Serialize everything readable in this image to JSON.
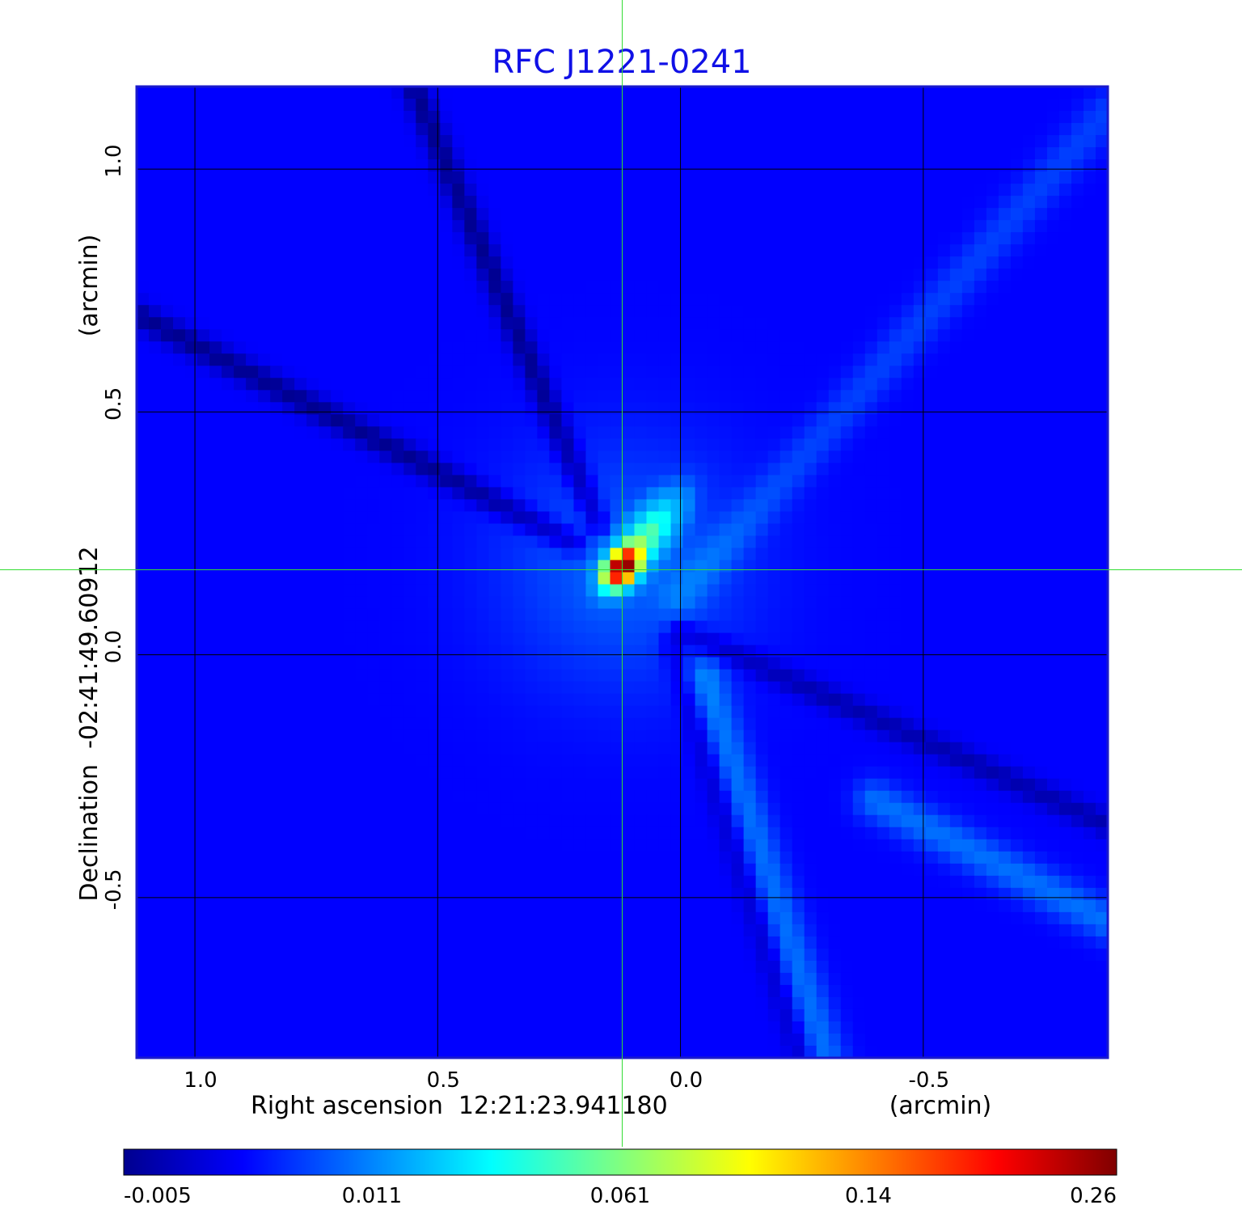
{
  "chart_data": {
    "type": "heatmap",
    "title": "RFC J1221-0241",
    "xlabel": "Right ascension  12:21:23.941180",
    "xunit": "(arcmin)",
    "ylabel": "Declination  -02:41:49.60912",
    "yunit": "(arcmin)",
    "x_ticks": [
      "1.0",
      "0.5",
      "0.0",
      "-0.5"
    ],
    "x_tick_values": [
      1.0,
      0.5,
      0.0,
      -0.5
    ],
    "y_ticks": [
      "1.0",
      "0.5",
      "0.0",
      "-0.5"
    ],
    "y_tick_values": [
      1.0,
      0.5,
      0.0,
      -0.5
    ],
    "xlim": [
      1.12,
      -0.88
    ],
    "ylim": [
      -0.83,
      1.17
    ],
    "grid": true,
    "crosshair": {
      "x": 0.12,
      "y": 0.175,
      "color": "#33dd33"
    },
    "colorbar": {
      "colormap": "jet",
      "ticks": [
        "-0.005",
        "0.011",
        "0.061",
        "0.14",
        "0.26"
      ],
      "tick_values": [
        -0.005,
        0.011,
        0.061,
        0.14,
        0.26
      ]
    },
    "background_value": 0.003,
    "peak": {
      "x": 0.12,
      "y": 0.18,
      "value": 0.26
    },
    "features": [
      {
        "kind": "negative-stripe",
        "from": [
          1.12,
          0.7
        ],
        "to": [
          0.22,
          0.23
        ],
        "value": -0.004
      },
      {
        "kind": "negative-stripe",
        "from": [
          0.55,
          1.17
        ],
        "to": [
          0.17,
          0.27
        ],
        "value": -0.004
      },
      {
        "kind": "negative-stripe",
        "from": [
          0.0,
          0.05
        ],
        "to": [
          -0.88,
          -0.35
        ],
        "value": -0.002
      },
      {
        "kind": "negative-stripe",
        "from": [
          0.02,
          0.02
        ],
        "to": [
          -0.25,
          -0.83
        ],
        "value": -0.001
      },
      {
        "kind": "positive-stripe",
        "from": [
          -0.05,
          -0.05
        ],
        "to": [
          -0.3,
          -0.83
        ],
        "value": 0.01
      },
      {
        "kind": "positive-stripe",
        "from": [
          -0.4,
          -0.3
        ],
        "to": [
          -0.88,
          -0.55
        ],
        "value": 0.01
      },
      {
        "kind": "positive-stripe",
        "from": [
          -0.88,
          1.12
        ],
        "to": [
          0.0,
          0.12
        ],
        "value": 0.007
      }
    ]
  }
}
